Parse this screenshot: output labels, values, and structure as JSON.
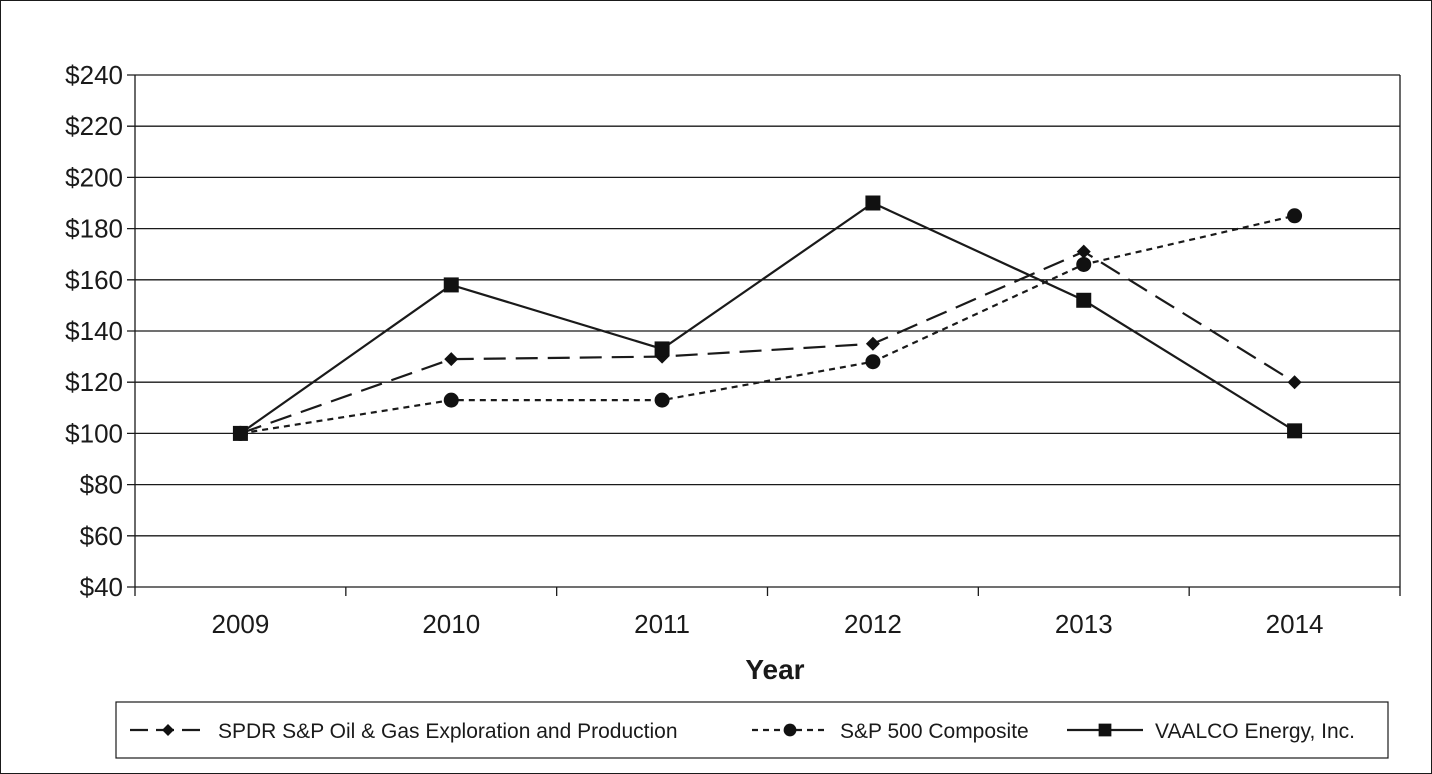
{
  "chart_data": {
    "type": "line",
    "xlabel": "Year",
    "ylabel": "",
    "categories": [
      "2009",
      "2010",
      "2011",
      "2012",
      "2013",
      "2014"
    ],
    "ylim": [
      40,
      240
    ],
    "y_ticks": [
      40,
      60,
      80,
      100,
      120,
      140,
      160,
      180,
      200,
      220,
      240
    ],
    "y_tick_format": "$",
    "grid": "horizontal",
    "legend_position": "bottom",
    "series": [
      {
        "name": "SPDR S&P Oil & Gas Exploration and Production",
        "marker": "diamond",
        "line_style": "long-dash",
        "color": "#1a1a1a",
        "values": [
          100,
          129,
          130,
          135,
          171,
          120
        ]
      },
      {
        "name": "S&P 500 Composite",
        "marker": "circle",
        "line_style": "short-dash",
        "color": "#1a1a1a",
        "values": [
          100,
          113,
          113,
          128,
          166,
          185
        ]
      },
      {
        "name": "VAALCO Energy, Inc.",
        "marker": "square",
        "line_style": "solid",
        "color": "#1a1a1a",
        "values": [
          100,
          158,
          133,
          190,
          152,
          101
        ]
      }
    ]
  }
}
